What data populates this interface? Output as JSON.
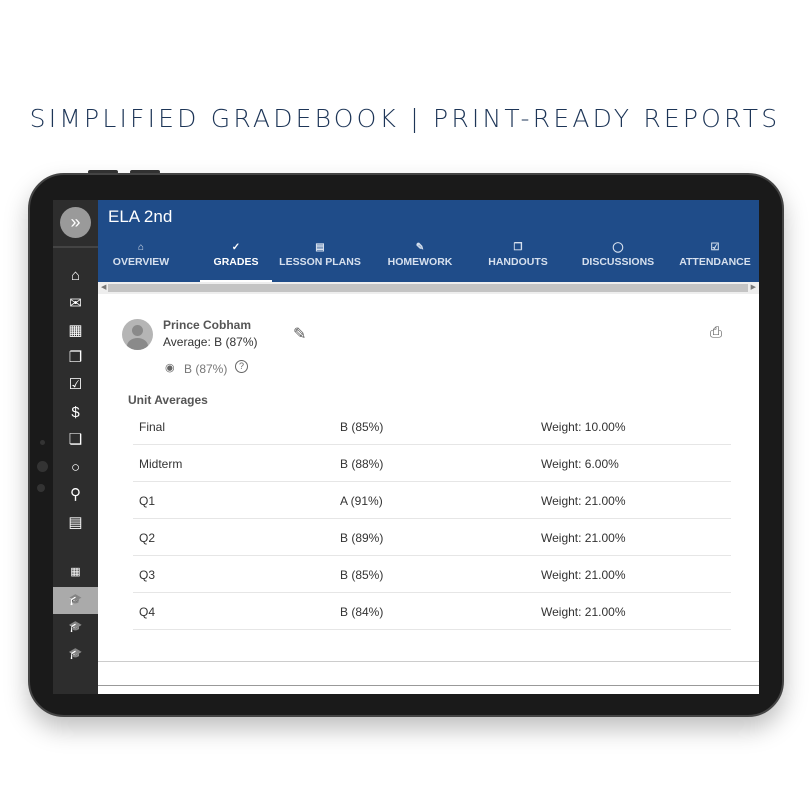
{
  "headline": "SIMPLIFIED GRADEBOOK | PRINT-READY REPORTS",
  "app": {
    "title": "ELA 2nd",
    "accent": "#1f4c89"
  },
  "tabs": [
    {
      "label": "OVERVIEW",
      "icon": "home-icon",
      "glyph": "⌂"
    },
    {
      "label": "GRADES",
      "icon": "grades-icon",
      "glyph": "✓"
    },
    {
      "label": "LESSON PLANS",
      "icon": "document-icon",
      "glyph": "▤"
    },
    {
      "label": "HOMEWORK",
      "icon": "pencil-icon",
      "glyph": "✎"
    },
    {
      "label": "HANDOUTS",
      "icon": "copy-icon",
      "glyph": "❐"
    },
    {
      "label": "DISCUSSIONS",
      "icon": "chat-icon",
      "glyph": "◯"
    },
    {
      "label": "ATTENDANCE",
      "icon": "clipboard-check-icon",
      "glyph": "☑"
    }
  ],
  "sidebar": [
    {
      "icon": "home-icon",
      "glyph": "⌂"
    },
    {
      "icon": "mail-icon",
      "glyph": "✉"
    },
    {
      "icon": "calendar-icon",
      "glyph": "▦"
    },
    {
      "icon": "files-icon",
      "glyph": "❐"
    },
    {
      "icon": "clipboard-check-icon",
      "glyph": "☑"
    },
    {
      "icon": "dollar-icon",
      "glyph": "$"
    },
    {
      "icon": "copy-icon",
      "glyph": "❏"
    },
    {
      "icon": "chat-icon",
      "glyph": "○"
    },
    {
      "icon": "search-icon",
      "glyph": "⚲"
    },
    {
      "icon": "document-icon",
      "glyph": "▤"
    }
  ],
  "sidebar_classes": [
    {
      "icon": "grid-icon",
      "glyph": "▦"
    },
    {
      "icon": "graduation-cap-icon",
      "glyph": "🎓"
    },
    {
      "icon": "graduation-cap-icon",
      "glyph": "🎓"
    },
    {
      "icon": "graduation-cap-icon",
      "glyph": "🎓"
    }
  ],
  "student": {
    "name": "Prince Cobham",
    "average": "Average: B (87%)",
    "hidden_grade": "B (87%)"
  },
  "unit_averages": {
    "heading": "Unit Averages",
    "rows": [
      {
        "unit": "Final",
        "grade": "B (85%)",
        "weight": "Weight: 10.00%"
      },
      {
        "unit": "Midterm",
        "grade": "B (88%)",
        "weight": "Weight: 6.00%"
      },
      {
        "unit": "Q1",
        "grade": "A (91%)",
        "weight": "Weight: 21.00%"
      },
      {
        "unit": "Q2",
        "grade": "B (89%)",
        "weight": "Weight: 21.00%"
      },
      {
        "unit": "Q3",
        "grade": "B (85%)",
        "weight": "Weight: 21.00%"
      },
      {
        "unit": "Q4",
        "grade": "B (84%)",
        "weight": "Weight: 21.00%"
      }
    ]
  }
}
